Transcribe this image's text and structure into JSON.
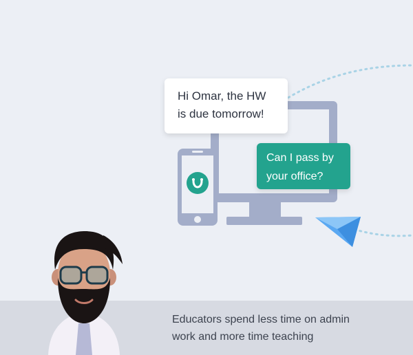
{
  "chat": {
    "teacher_message": [
      "Hi Omar, the HW",
      "is due tomorrow!"
    ],
    "student_reply": [
      "Can I pass by",
      "your office?"
    ]
  },
  "caption": {
    "line1": "Educators spend less time on admin",
    "line2": "work and more time teaching"
  },
  "colors": {
    "background": "#eceff5",
    "footer": "#d7dae2",
    "device": "#a3adc9",
    "accent_green": "#23a38e",
    "plane": "#5aa8f2"
  },
  "icons": [
    "phone-icon",
    "monitor-icon",
    "app-logo-icon",
    "paper-plane-icon",
    "teacher-avatar"
  ]
}
